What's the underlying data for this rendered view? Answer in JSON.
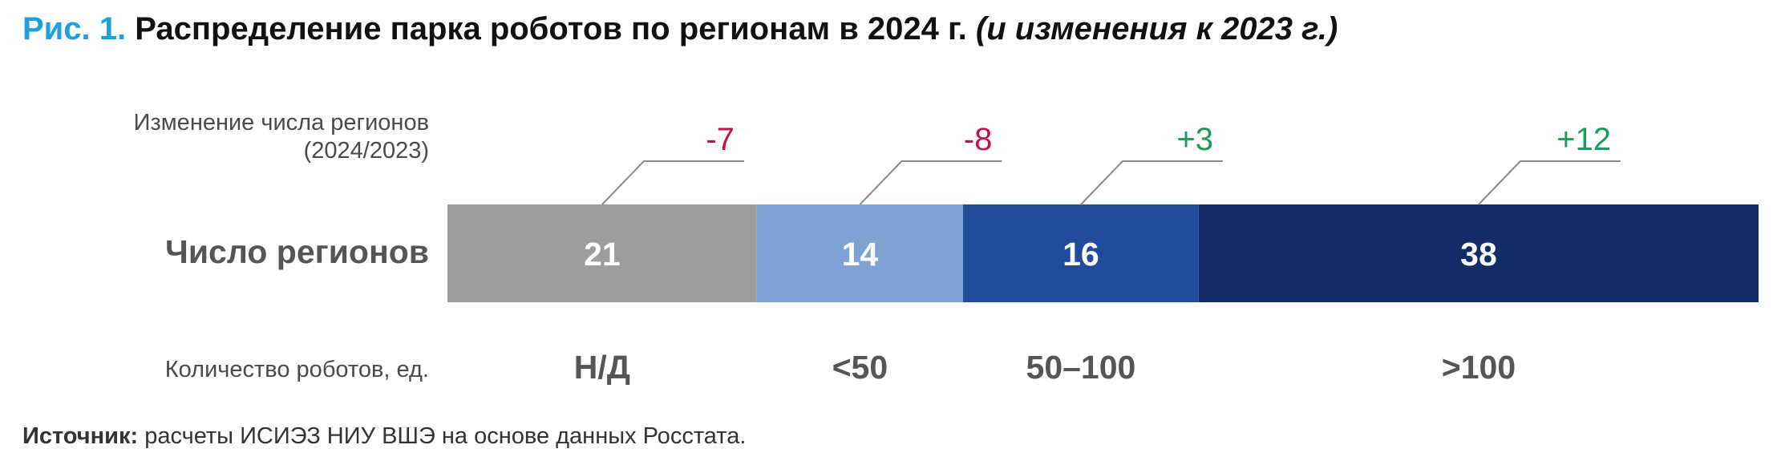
{
  "title": {
    "fig_label": "Рис. 1.",
    "main": "Распределение парка роботов по регионам в 2024 г.",
    "sub": "(и изменения к 2023 г.)"
  },
  "chart_data": {
    "type": "bar",
    "orientation": "horizontal-stacked",
    "row_label": "Число регионов",
    "change_label_line1": "Изменение числа регионов",
    "change_label_line2": "(2024/2023)",
    "category_axis_label": "Количество роботов, ед.",
    "categories": [
      "Н/Д",
      "<50",
      "50–100",
      ">100"
    ],
    "values": [
      21,
      14,
      16,
      38
    ],
    "changes": [
      "-7",
      "-8",
      "+3",
      "+12"
    ],
    "colors": [
      "#9d9d9d",
      "#7fa2d4",
      "#234b9b",
      "#132c68"
    ],
    "change_colors": {
      "negative": "#c0144a",
      "positive": "#1f9a5a"
    }
  },
  "source": {
    "label": "Источник:",
    "text": " расчеты ИСИЭЗ НИУ ВШЭ на основе данных Росстата."
  }
}
